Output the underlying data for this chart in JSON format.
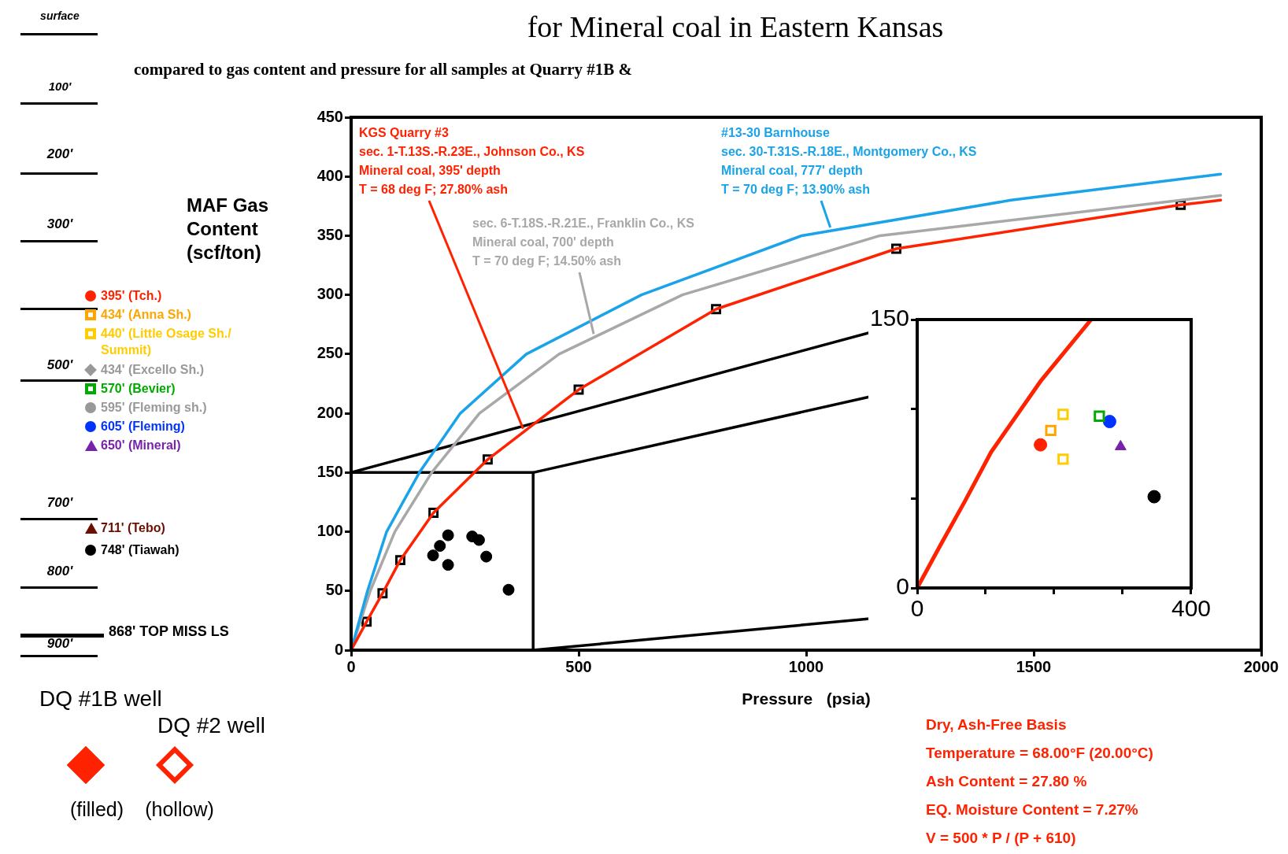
{
  "chart_data": [
    {
      "type": "other",
      "annotations": [
        "surface",
        "100'",
        "200'",
        "300'",
        "500'",
        "700'",
        "800'",
        "900'",
        "868' TOP MISS LS",
        "DQ #1B well",
        "DQ #2 well",
        "(filled)",
        "(hollow)"
      ]
    },
    {
      "type": "line",
      "title": "for Mineral coal in Eastern Kansas",
      "subtitle": "compared to gas content and pressure for all samples at Quarry #1B &",
      "xlabel": "Pressure   (psia)",
      "ylabel": "MAF Gas Content (scf/ton)",
      "xlim": [
        0,
        2000
      ],
      "xticks": [
        0,
        500,
        1000,
        1500,
        2000
      ],
      "ylim": [
        0,
        450
      ],
      "yticks": [
        0,
        50,
        100,
        150,
        200,
        250,
        300,
        350,
        400,
        450
      ],
      "series": [
        {
          "color": "#ff2200",
          "marker": "none",
          "x": [
            0,
            34,
            69,
            108,
            181,
            300,
            500,
            802,
            1198,
            1823,
            1911
          ],
          "values": [
            0,
            24,
            48,
            76,
            116,
            161,
            220,
            288,
            339,
            376,
            380
          ]
        },
        {
          "color": "#1aa3e8",
          "marker": "none",
          "x": [
            0,
            36,
            78,
            150,
            240,
            385,
            638,
            990,
            1450,
            1911
          ],
          "values": [
            0,
            50,
            100,
            150,
            200,
            250,
            300,
            350,
            380,
            402
          ]
        },
        {
          "color": "#a8a8a8",
          "marker": "none",
          "x": [
            0,
            42,
            96,
            177,
            282,
            457,
            728,
            1162,
            1911
          ],
          "values": [
            0,
            50,
            100,
            150,
            200,
            250,
            300,
            350,
            384
          ]
        },
        {
          "type": "scatter",
          "color": "#000000",
          "marker": "square",
          "x": [
            34,
            69,
            108,
            181,
            300,
            500,
            802,
            1198,
            1823
          ],
          "values": [
            24,
            48,
            76,
            116,
            161,
            220,
            288,
            339,
            376
          ]
        },
        {
          "type": "scatter",
          "color": "#000000",
          "marker": "circle",
          "x": [
            180,
            195,
            213,
            213,
            266,
            281,
            297,
            346
          ],
          "values": [
            80,
            88,
            97,
            72,
            96,
            93,
            79,
            51
          ]
        },
        {
          "color": "#000000",
          "marker": "none",
          "x": [
            0,
            400,
            400
          ],
          "values": [
            150,
            150,
            0
          ]
        },
        {
          "color": "#000000",
          "marker": "none",
          "x": [
            0,
            1244
          ],
          "values": [
            150,
            279
          ]
        },
        {
          "color": "#000000",
          "marker": "none",
          "x": [
            400,
            1244
          ],
          "values": [
            150,
            223
          ]
        },
        {
          "color": "#000000",
          "marker": "none",
          "x": [
            400,
            1849
          ],
          "values": [
            0,
            52
          ]
        }
      ],
      "annotations": [
        {
          "text": "KGS Quarry #3\nsec. 1-T.13S.-R.23E., Johnson Co., KS\nMineral coal, 395' depth\nT = 68 deg F; 27.80% ash",
          "x": 378,
          "y": 187
        },
        {
          "text": "#13-30 Barnhouse\nsec. 30-T.31S.-R.18E., Montgomery Co., KS\nMineral coal, 777' depth\nT = 70 deg F; 13.90% ash",
          "x": 1053,
          "y": 357
        },
        {
          "text": "sec. 6-T.18S.-R.21E., Franklin Co., KS\nMineral coal, 700' depth\nT = 70 deg F; 14.50% ash",
          "x": 533,
          "y": 267
        },
        "Dry, Ash-Free Basis",
        "Temperature = 68.00°F (20.00°C)",
        "Ash Content = 27.80 %",
        "EQ. Moisture Content = 7.27%",
        "V = 500 * P / (P + 610)"
      ]
    },
    {
      "type": "scatter",
      "xlim": [
        0,
        400
      ],
      "xticks": [
        0,
        {
          "value": 100,
          "label": null
        },
        {
          "value": 200,
          "label": null
        },
        {
          "value": 300,
          "label": null
        },
        400
      ],
      "ylim": [
        0,
        150
      ],
      "yticks": [
        0,
        {
          "value": 50,
          "label": null
        },
        {
          "value": 100,
          "label": null
        },
        150
      ],
      "legend": "left",
      "series": [
        {
          "type": "line",
          "color": "#ff2200",
          "marker": "none",
          "x": [
            0,
            34,
            69,
            108,
            181,
            254
          ],
          "values": [
            0,
            24,
            48,
            76,
            116,
            150
          ]
        },
        {
          "name": "395' (Tch.)",
          "color": "#ff2200",
          "marker": "circle",
          "x": [
            180
          ],
          "values": [
            80
          ]
        },
        {
          "name": "434' (Anna Sh.)",
          "color": "#ffa500",
          "marker": "square",
          "x": [
            195
          ],
          "values": [
            88
          ]
        },
        {
          "name": "440' (Little Osage Sh./ Summit)",
          "color": "#ffcc00",
          "marker": "square",
          "x": [
            213,
            213
          ],
          "values": [
            97,
            72
          ]
        },
        {
          "name": "434' (Excello Sh.)",
          "color": "#999999",
          "marker": "diamond"
        },
        {
          "name": "570' (Bevier)",
          "color": "#00aa00",
          "marker": "square",
          "x": [
            266
          ],
          "values": [
            96
          ]
        },
        {
          "name": "595' (Fleming sh.)",
          "color": "#999999",
          "marker": "circle"
        },
        {
          "name": "605' (Fleming)",
          "color": "#0033ff",
          "marker": "circle",
          "x": [
            281
          ],
          "values": [
            93
          ]
        },
        {
          "name": "650' (Mineral)",
          "color": "#7722aa",
          "marker": "triangle",
          "x": [
            297
          ],
          "values": [
            79
          ]
        },
        {
          "name": "711' (Tebo)",
          "color": "#6b0f00",
          "marker": "triangle"
        },
        {
          "name": "748' (Tiawah)",
          "color": "#000000",
          "marker": "circle",
          "x": [
            346
          ],
          "values": [
            51
          ]
        }
      ]
    }
  ]
}
